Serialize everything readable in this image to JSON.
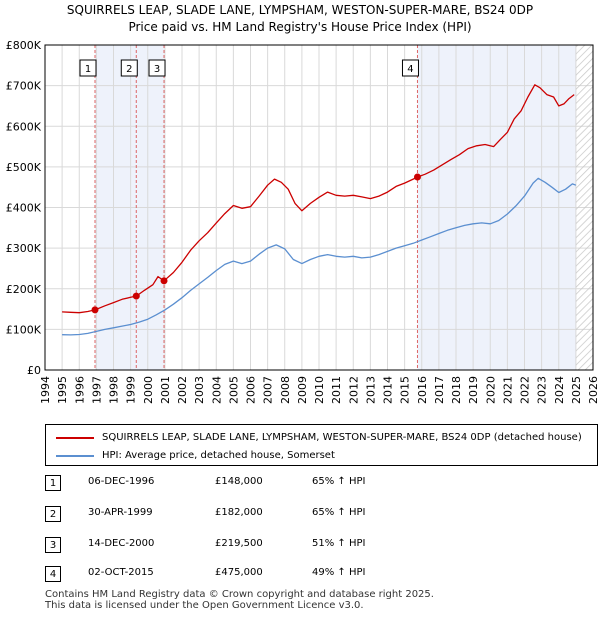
{
  "chart_data": {
    "type": "line",
    "title_line1": "SQUIRRELS LEAP, SLADE LANE, LYMPSHAM, WESTON-SUPER-MARE, BS24 0DP",
    "title_line2": "Price paid vs. HM Land Registry's House Price Index (HPI)",
    "y_ticks": [
      {
        "value": 0,
        "label": "£0"
      },
      {
        "value": 100000,
        "label": "£100K"
      },
      {
        "value": 200000,
        "label": "£200K"
      },
      {
        "value": 300000,
        "label": "£300K"
      },
      {
        "value": 400000,
        "label": "£400K"
      },
      {
        "value": 500000,
        "label": "£500K"
      },
      {
        "value": 600000,
        "label": "£600K"
      },
      {
        "value": 700000,
        "label": "£700K"
      },
      {
        "value": 800000,
        "label": "£800K"
      }
    ],
    "x_ticks": [
      "1994",
      "1995",
      "1996",
      "1997",
      "1998",
      "1999",
      "2000",
      "2001",
      "2002",
      "2003",
      "2004",
      "2005",
      "2006",
      "2007",
      "2008",
      "2009",
      "2010",
      "2011",
      "2012",
      "2013",
      "2014",
      "2015",
      "2016",
      "2017",
      "2018",
      "2019",
      "2020",
      "2021",
      "2022",
      "2023",
      "2024",
      "2025",
      "2026"
    ],
    "xlim": [
      1994.0,
      2026.0
    ],
    "ylim": [
      0,
      800000
    ],
    "grid": true,
    "hatched_after": 2025.0,
    "series": [
      {
        "name": "SQUIRRELS LEAP, SLADE LANE, LYMPSHAM, WESTON-SUPER-MARE, BS24 0DP (detached house)",
        "color": "#cc0000",
        "points": [
          [
            1995.0,
            143000
          ],
          [
            1995.5,
            142000
          ],
          [
            1996.0,
            141000
          ],
          [
            1996.5,
            144000
          ],
          [
            1996.92,
            148000
          ],
          [
            1997.5,
            158000
          ],
          [
            1998.0,
            166000
          ],
          [
            1998.5,
            174000
          ],
          [
            1999.0,
            179000
          ],
          [
            1999.33,
            182000
          ],
          [
            1999.8,
            196000
          ],
          [
            2000.3,
            210000
          ],
          [
            2000.6,
            230000
          ],
          [
            2000.95,
            219500
          ],
          [
            2001.5,
            240000
          ],
          [
            2002.0,
            265000
          ],
          [
            2002.5,
            295000
          ],
          [
            2003.0,
            318000
          ],
          [
            2003.5,
            338000
          ],
          [
            2004.0,
            362000
          ],
          [
            2004.5,
            385000
          ],
          [
            2005.0,
            405000
          ],
          [
            2005.5,
            398000
          ],
          [
            2006.0,
            402000
          ],
          [
            2006.5,
            428000
          ],
          [
            2007.0,
            455000
          ],
          [
            2007.4,
            470000
          ],
          [
            2007.8,
            462000
          ],
          [
            2008.2,
            445000
          ],
          [
            2008.6,
            410000
          ],
          [
            2009.0,
            392000
          ],
          [
            2009.5,
            410000
          ],
          [
            2010.0,
            425000
          ],
          [
            2010.5,
            438000
          ],
          [
            2011.0,
            430000
          ],
          [
            2011.5,
            428000
          ],
          [
            2012.0,
            430000
          ],
          [
            2012.5,
            426000
          ],
          [
            2013.0,
            422000
          ],
          [
            2013.5,
            428000
          ],
          [
            2014.0,
            438000
          ],
          [
            2014.5,
            452000
          ],
          [
            2015.0,
            460000
          ],
          [
            2015.5,
            470000
          ],
          [
            2015.75,
            475000
          ],
          [
            2016.2,
            482000
          ],
          [
            2016.7,
            492000
          ],
          [
            2017.2,
            505000
          ],
          [
            2017.7,
            518000
          ],
          [
            2018.2,
            530000
          ],
          [
            2018.7,
            545000
          ],
          [
            2019.2,
            552000
          ],
          [
            2019.7,
            555000
          ],
          [
            2020.2,
            550000
          ],
          [
            2020.6,
            568000
          ],
          [
            2021.0,
            585000
          ],
          [
            2021.4,
            618000
          ],
          [
            2021.8,
            638000
          ],
          [
            2022.2,
            672000
          ],
          [
            2022.6,
            702000
          ],
          [
            2022.9,
            695000
          ],
          [
            2023.3,
            678000
          ],
          [
            2023.7,
            672000
          ],
          [
            2024.0,
            650000
          ],
          [
            2024.3,
            655000
          ],
          [
            2024.6,
            668000
          ],
          [
            2024.9,
            678000
          ]
        ]
      },
      {
        "name": "HPI: Average price, detached house, Somerset",
        "color": "#5b8fd0",
        "points": [
          [
            1995.0,
            87000
          ],
          [
            1995.5,
            86500
          ],
          [
            1996.0,
            87500
          ],
          [
            1996.5,
            90000
          ],
          [
            1997.0,
            95000
          ],
          [
            1997.5,
            100000
          ],
          [
            1998.0,
            104000
          ],
          [
            1998.5,
            108000
          ],
          [
            1999.0,
            112000
          ],
          [
            1999.5,
            118000
          ],
          [
            2000.0,
            125000
          ],
          [
            2000.5,
            136000
          ],
          [
            2001.0,
            148000
          ],
          [
            2001.5,
            162000
          ],
          [
            2002.0,
            178000
          ],
          [
            2002.5,
            196000
          ],
          [
            2003.0,
            212000
          ],
          [
            2003.5,
            228000
          ],
          [
            2004.0,
            245000
          ],
          [
            2004.5,
            260000
          ],
          [
            2005.0,
            268000
          ],
          [
            2005.5,
            262000
          ],
          [
            2006.0,
            268000
          ],
          [
            2006.5,
            285000
          ],
          [
            2007.0,
            300000
          ],
          [
            2007.5,
            308000
          ],
          [
            2008.0,
            298000
          ],
          [
            2008.5,
            272000
          ],
          [
            2009.0,
            262000
          ],
          [
            2009.5,
            272000
          ],
          [
            2010.0,
            280000
          ],
          [
            2010.5,
            284000
          ],
          [
            2011.0,
            280000
          ],
          [
            2011.5,
            278000
          ],
          [
            2012.0,
            280000
          ],
          [
            2012.5,
            276000
          ],
          [
            2013.0,
            278000
          ],
          [
            2013.5,
            284000
          ],
          [
            2014.0,
            292000
          ],
          [
            2014.5,
            300000
          ],
          [
            2015.0,
            306000
          ],
          [
            2015.5,
            312000
          ],
          [
            2016.0,
            320000
          ],
          [
            2016.5,
            328000
          ],
          [
            2017.0,
            336000
          ],
          [
            2017.5,
            344000
          ],
          [
            2018.0,
            350000
          ],
          [
            2018.5,
            356000
          ],
          [
            2019.0,
            360000
          ],
          [
            2019.5,
            362000
          ],
          [
            2020.0,
            360000
          ],
          [
            2020.5,
            368000
          ],
          [
            2021.0,
            384000
          ],
          [
            2021.5,
            404000
          ],
          [
            2022.0,
            428000
          ],
          [
            2022.5,
            460000
          ],
          [
            2022.8,
            472000
          ],
          [
            2023.2,
            462000
          ],
          [
            2023.6,
            450000
          ],
          [
            2024.0,
            437000
          ],
          [
            2024.4,
            445000
          ],
          [
            2024.8,
            458000
          ],
          [
            2025.0,
            455000
          ]
        ]
      }
    ],
    "sales": [
      {
        "id": "1",
        "label": "1",
        "x": 1996.92,
        "price": 148000,
        "date": "06-DEC-1996",
        "price_label": "£148,000",
        "hpi_label": "65% ↑ HPI"
      },
      {
        "id": "2",
        "label": "2",
        "x": 1999.33,
        "price": 182000,
        "date": "30-APR-1999",
        "price_label": "£182,000",
        "hpi_label": "65% ↑ HPI"
      },
      {
        "id": "3",
        "label": "3",
        "x": 2000.95,
        "price": 219500,
        "date": "14-DEC-2000",
        "price_label": "£219,500",
        "hpi_label": "51% ↑ HPI"
      },
      {
        "id": "4",
        "label": "4",
        "x": 2015.75,
        "price": 475000,
        "date": "02-OCT-2015",
        "price_label": "£475,000",
        "hpi_label": "49% ↑ HPI"
      }
    ]
  },
  "legend": {
    "red_label": "SQUIRRELS LEAP, SLADE LANE, LYMPSHAM, WESTON-SUPER-MARE, BS24 0DP (detached house)",
    "blue_label": "HPI: Average price, detached house, Somerset"
  },
  "sales_table": {
    "rows": [
      {
        "label": "1",
        "date": "06-DEC-1996",
        "price": "£148,000",
        "hpi": "65% ↑ HPI"
      },
      {
        "label": "2",
        "date": "30-APR-1999",
        "price": "£182,000",
        "hpi": "65% ↑ HPI"
      },
      {
        "label": "3",
        "date": "14-DEC-2000",
        "price": "£219,500",
        "hpi": "51% ↑ HPI"
      },
      {
        "label": "4",
        "date": "02-OCT-2015",
        "price": "£475,000",
        "hpi": "49% ↑ HPI"
      }
    ]
  },
  "footer": {
    "line1": "Contains HM Land Registry data © Crown copyright and database right 2025.",
    "line2": "This data is licensed under the Open Government Licence v3.0."
  },
  "colors": {
    "price_line": "#cc0000",
    "hpi_line": "#5b8fd0",
    "grid": "#d9d9d9",
    "sale_marker_line": "#dd6666",
    "sale_shading": "#eef2fb"
  }
}
